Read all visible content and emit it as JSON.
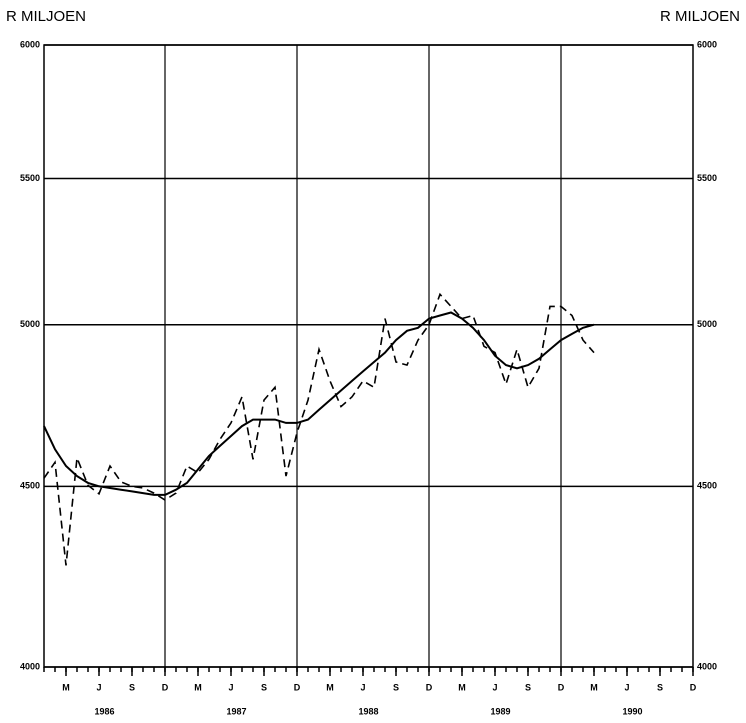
{
  "chart_data": {
    "type": "line",
    "title_left": "R MILJOEN",
    "title_right": "R MILJOEN",
    "log_scale": true,
    "grid": true,
    "xlim": [
      0,
      59
    ],
    "ylim": [
      4000,
      6000
    ],
    "yticks": [
      4000,
      4500,
      5000,
      5500,
      6000
    ],
    "xgrid": [
      11,
      23,
      35,
      47
    ],
    "xticks": [
      {
        "value": 2,
        "label": "M"
      },
      {
        "value": 5,
        "label": "J"
      },
      {
        "value": 8,
        "label": "S"
      },
      {
        "value": 11,
        "label": "D"
      },
      {
        "value": 14,
        "label": "M"
      },
      {
        "value": 17,
        "label": "J"
      },
      {
        "value": 20,
        "label": "S"
      },
      {
        "value": 23,
        "label": "D"
      },
      {
        "value": 26,
        "label": "M"
      },
      {
        "value": 29,
        "label": "J"
      },
      {
        "value": 32,
        "label": "S"
      },
      {
        "value": 35,
        "label": "D"
      },
      {
        "value": 38,
        "label": "M"
      },
      {
        "value": 41,
        "label": "J"
      },
      {
        "value": 44,
        "label": "S"
      },
      {
        "value": 47,
        "label": "D"
      },
      {
        "value": 50,
        "label": "M"
      },
      {
        "value": 53,
        "label": "J"
      },
      {
        "value": 56,
        "label": "S"
      },
      {
        "value": 59,
        "label": "D"
      }
    ],
    "xticks_minor": [
      0,
      1,
      2,
      3,
      4,
      5,
      6,
      7,
      8,
      9,
      10,
      11,
      12,
      13,
      14,
      15,
      16,
      17,
      18,
      19,
      20,
      21,
      22,
      23,
      24,
      25,
      26,
      27,
      28,
      29,
      30,
      31,
      32,
      33,
      34,
      35,
      36,
      37,
      38,
      39,
      40,
      41,
      42,
      43,
      44,
      45,
      46,
      47,
      48,
      49,
      50,
      51,
      52,
      53,
      54,
      55,
      56,
      57,
      58,
      59
    ],
    "years": [
      "1986",
      "1987",
      "1988",
      "1989",
      "1990"
    ],
    "x": [
      0,
      1,
      2,
      3,
      4,
      5,
      6,
      7,
      8,
      9,
      10,
      11,
      12,
      13,
      14,
      15,
      16,
      17,
      18,
      19,
      20,
      21,
      22,
      23,
      24,
      25,
      26,
      27,
      28,
      29,
      30,
      31,
      32,
      33,
      34,
      35,
      36,
      37,
      38,
      39,
      40,
      41,
      42,
      43,
      44,
      45,
      46,
      47,
      48,
      49,
      50
    ],
    "series": [
      {
        "color": "#000000",
        "style": "solid",
        "values": [
          4680,
          4610,
          4560,
          4530,
          4510,
          4500,
          4495,
          4490,
          4485,
          4480,
          4475,
          4475,
          4490,
          4510,
          4550,
          4590,
          4620,
          4650,
          4680,
          4700,
          4700,
          4700,
          4690,
          4690,
          4700,
          4730,
          4760,
          4790,
          4820,
          4850,
          4880,
          4910,
          4950,
          4980,
          4990,
          5020,
          5030,
          5040,
          5020,
          4990,
          4950,
          4900,
          4870,
          4860,
          4870,
          4890,
          4920,
          4950,
          4970,
          4990,
          5000
        ]
      },
      {
        "color": "#000000",
        "style": "dashed",
        "values": [
          4524,
          4571,
          4274,
          4584,
          4503,
          4478,
          4560,
          4513,
          4500,
          4495,
          4480,
          4460,
          4480,
          4560,
          4540,
          4580,
          4640,
          4690,
          4770,
          4580,
          4760,
          4800,
          4530,
          4660,
          4760,
          4920,
          4820,
          4740,
          4770,
          4820,
          4800,
          5020,
          4880,
          4870,
          4950,
          5000,
          5100,
          5060,
          5020,
          5030,
          4930,
          4910,
          4810,
          4920,
          4800,
          4860,
          5060,
          5060,
          5030,
          4950,
          4910
        ]
      }
    ]
  }
}
